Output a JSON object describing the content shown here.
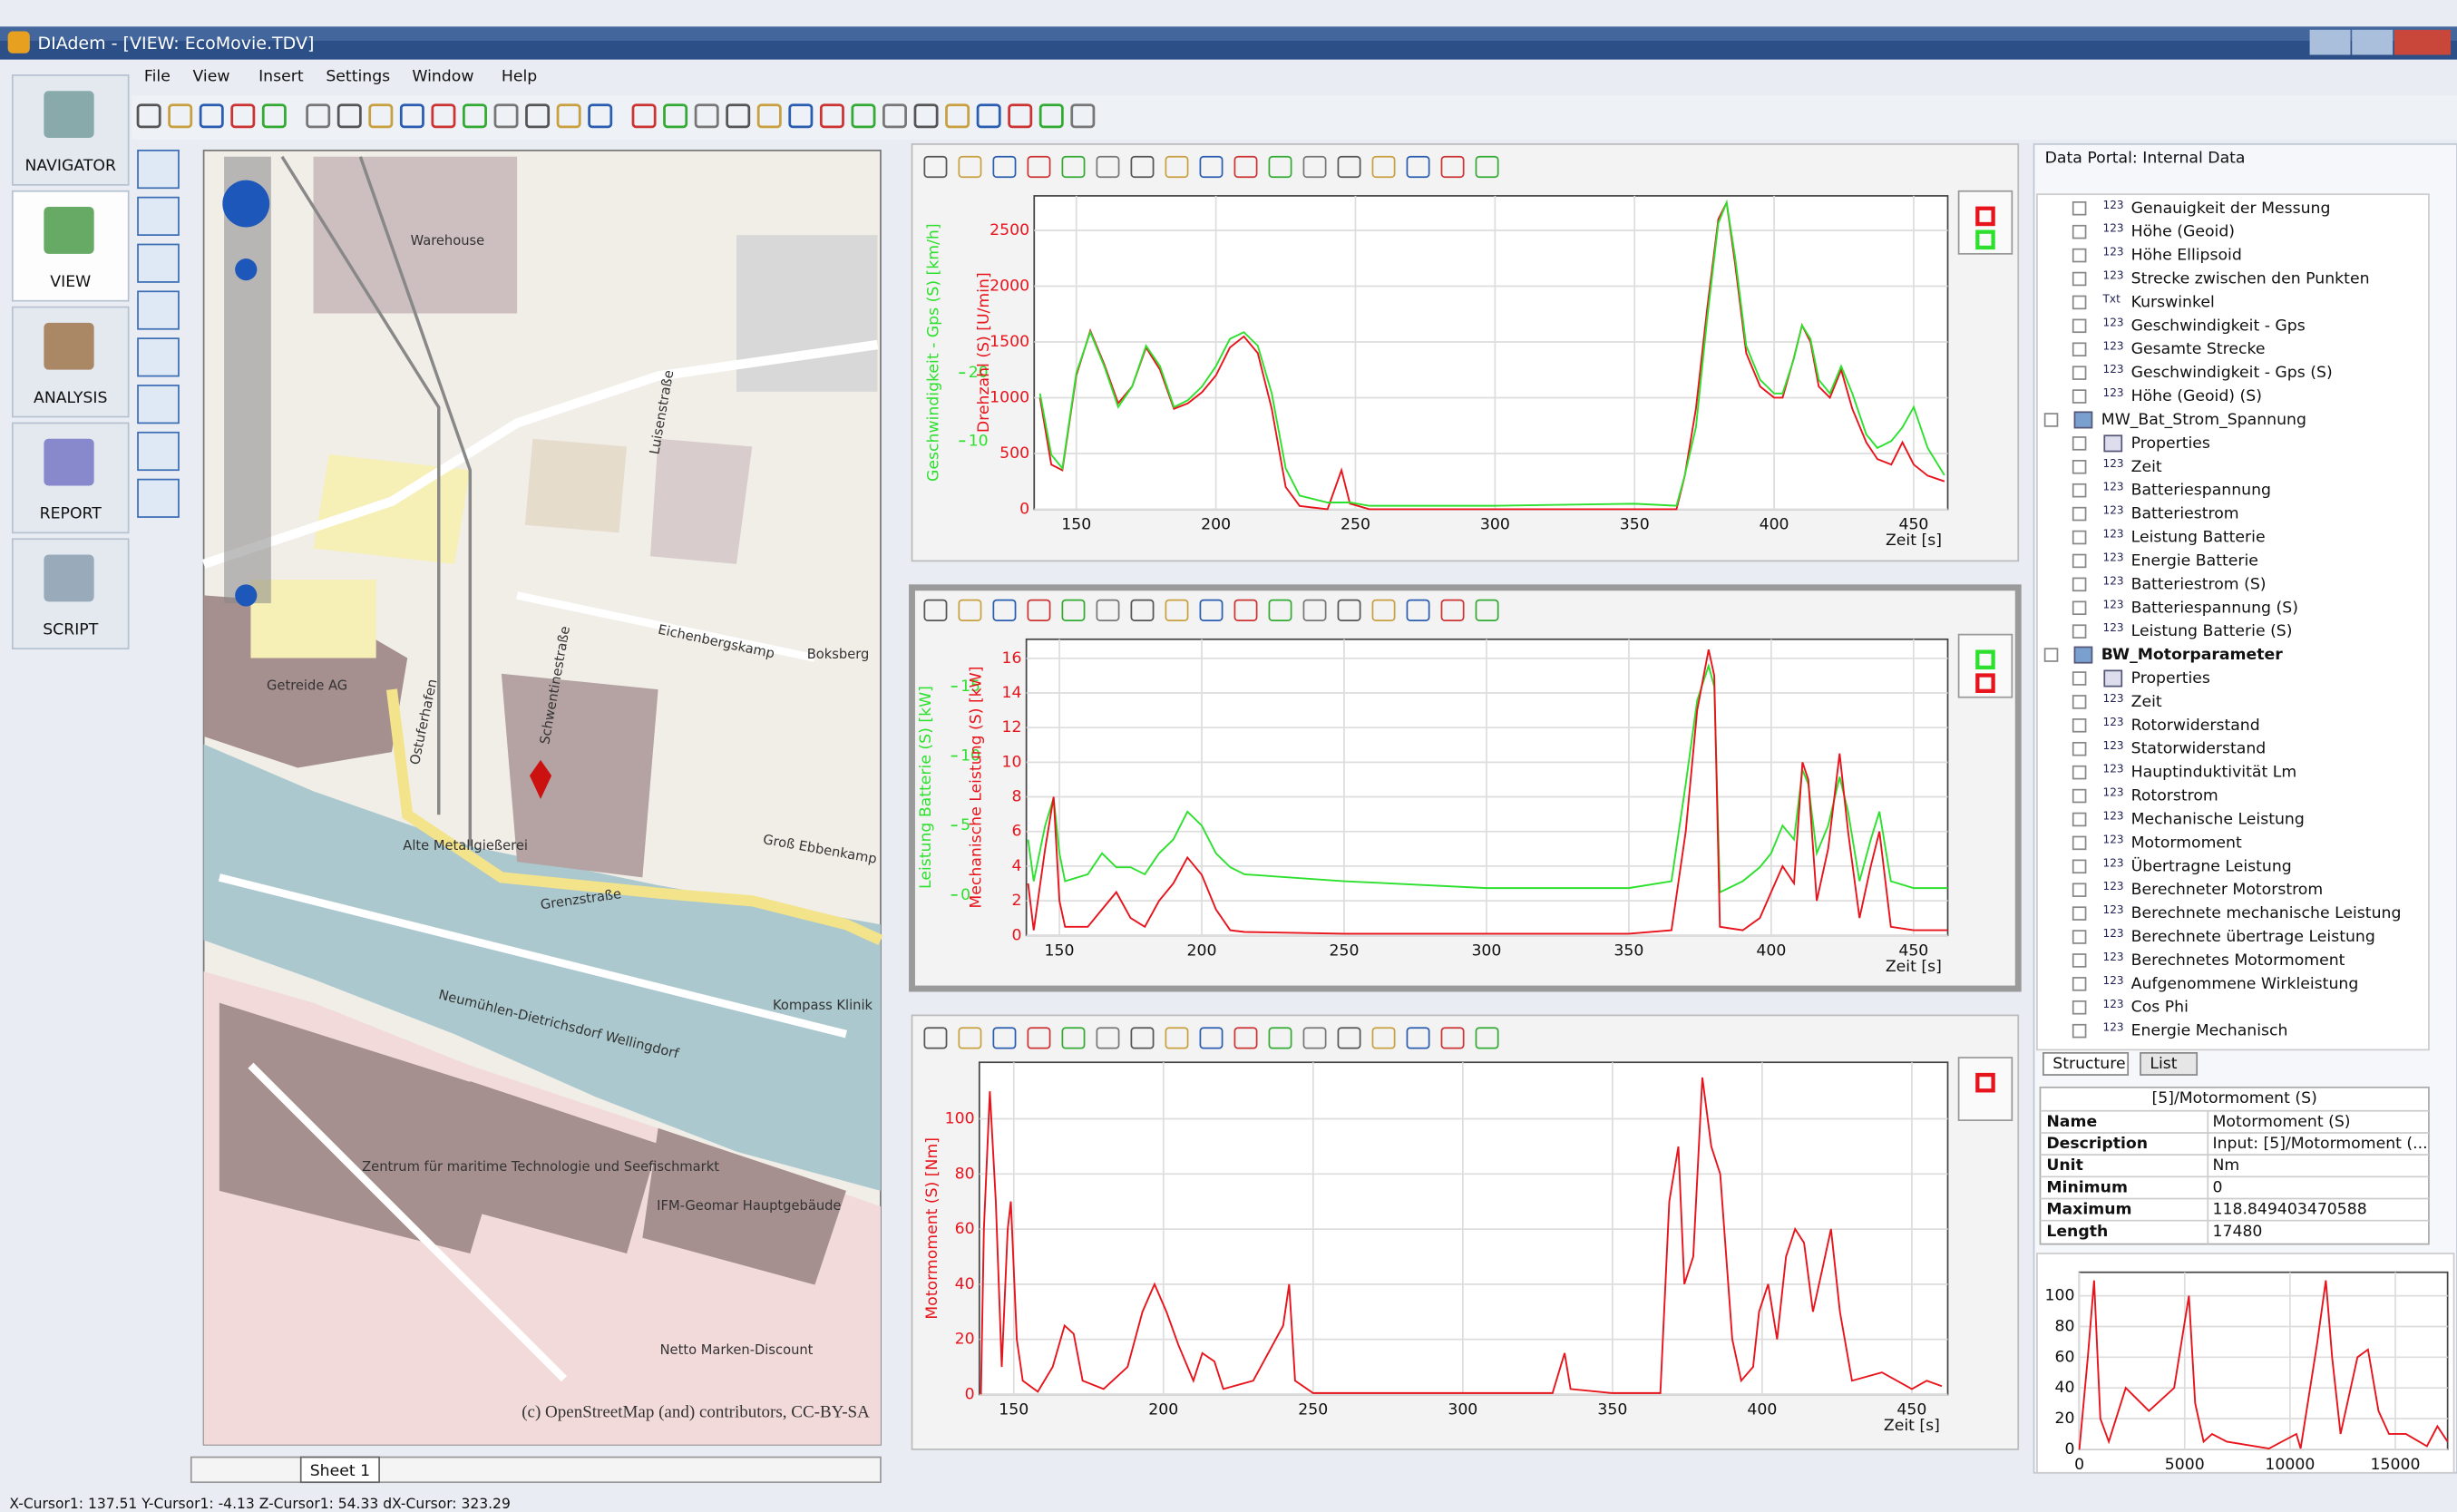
{
  "window": {
    "title": "DIAdem - [VIEW:  EcoMovie.TDV]"
  },
  "menu": [
    "File",
    "View",
    "Insert",
    "Settings",
    "Window",
    "Help"
  ],
  "nav": [
    "NAVIGATOR",
    "VIEW",
    "ANALYSIS",
    "REPORT",
    "SCRIPT"
  ],
  "map": {
    "labels": [
      "Warehouse",
      "Getreide AG",
      "Alte Metallgießerei",
      "Eichenbergskamp",
      "Boksberg",
      "Grenzstraße",
      "Groß Ebbenkamp",
      "Neumühlen-Dietrichsdorf Wellingdorf",
      "Zentrum für maritime Technologie und Seefischmarkt",
      "IFM-Geomar Hauptgebäude",
      "Kompass Klinik",
      "Netto Marken-Discount",
      "Schwentinestraße",
      "Luisenstraße",
      "Ostufer­hafen"
    ],
    "attribution": "(c) OpenStreetMap (and) contributors, CC-BY-SA"
  },
  "sheet_tab": "Sheet 1",
  "charts": [
    {
      "type": "line",
      "xlabel": "Zeit [s]",
      "ylabel": "Drehzahl (S) [U/min]",
      "y2label": "Geschwindigkeit - Gps (S) [km/h]",
      "xlim": [
        134.9,
        462.2
      ],
      "xticks": [
        150,
        200,
        250,
        300,
        350,
        400,
        450
      ],
      "ylim": [
        0,
        2810
      ],
      "yticks": [
        0,
        500,
        1000,
        1500,
        2000,
        2500
      ],
      "y2lim": [
        0,
        46
      ],
      "y2ticks": [
        10,
        20
      ],
      "x": [
        137,
        141,
        145,
        150,
        155,
        160,
        165,
        170,
        175,
        180,
        185,
        190,
        195,
        200,
        205,
        210,
        215,
        220,
        225,
        230,
        240,
        245,
        248,
        255,
        300,
        350,
        365,
        368,
        372,
        376,
        380,
        383,
        386,
        390,
        395,
        400,
        403,
        407,
        410,
        413,
        416,
        420,
        424,
        428,
        433,
        437,
        442,
        446,
        450,
        455,
        461
      ],
      "series": [
        {
          "color": "#e8141c",
          "values": [
            1000,
            400,
            350,
            1200,
            1600,
            1300,
            950,
            1100,
            1450,
            1250,
            900,
            950,
            1050,
            1200,
            1450,
            1550,
            1400,
            900,
            200,
            30,
            0,
            350,
            50,
            0,
            0,
            0,
            0,
            300,
            900,
            1800,
            2600,
            2750,
            2200,
            1400,
            1100,
            1000,
            1000,
            1350,
            1650,
            1500,
            1100,
            1000,
            1250,
            900,
            600,
            450,
            400,
            600,
            400,
            300,
            250
          ]
        },
        {
          "color": "#2ee02e",
          "axis": "y2",
          "values": [
            17,
            8,
            6,
            20,
            26,
            21,
            15,
            18,
            24,
            21,
            15,
            16,
            18,
            21,
            25,
            26,
            24,
            17,
            6,
            2,
            1,
            1,
            1,
            0.5,
            0.5,
            0.8,
            0.5,
            5,
            12,
            28,
            42,
            45,
            37,
            24,
            19,
            17,
            17,
            22,
            27,
            25,
            19,
            17,
            21,
            17,
            11,
            9,
            10,
            12,
            15,
            9,
            5
          ]
        }
      ]
    },
    {
      "type": "line",
      "xlabel": "Zeit [s]",
      "ylabel": "Mechanische Leistung (S) [kW]",
      "y2label": "Leistung Batterie (S) [kW]",
      "xlim": [
        138.4,
        462
      ],
      "xticks": [
        150,
        200,
        250,
        300,
        350,
        400,
        450
      ],
      "ylim": [
        0,
        17.1
      ],
      "yticks": [
        0,
        2,
        4,
        6,
        8,
        10,
        12,
        14,
        16
      ],
      "y2lim": [
        -2.9,
        18.4
      ],
      "y2ticks": [
        0,
        5,
        10,
        15
      ],
      "x": [
        139,
        141,
        145,
        148,
        150,
        152,
        160,
        165,
        170,
        175,
        180,
        185,
        190,
        195,
        200,
        205,
        210,
        215,
        250,
        300,
        350,
        365,
        370,
        374,
        378,
        380,
        382,
        390,
        396,
        400,
        404,
        408,
        411,
        413,
        416,
        420,
        424,
        427,
        431,
        435,
        438,
        442,
        450,
        462
      ],
      "series": [
        {
          "color": "#2ee02e",
          "axis": "y2",
          "values": [
            4,
            1,
            5,
            7,
            3,
            1,
            1.5,
            3,
            2,
            2,
            1.5,
            3,
            4,
            6,
            5,
            3,
            2,
            1.5,
            1,
            0.5,
            0.5,
            1,
            8,
            14,
            16.5,
            15,
            0.2,
            1,
            2,
            3,
            5,
            4,
            9,
            8,
            3,
            5,
            8.5,
            6,
            1,
            4,
            6,
            1,
            0.5,
            0.5
          ]
        },
        {
          "color": "#e8141c",
          "values": [
            3,
            0.3,
            5,
            8,
            2,
            0.5,
            0.5,
            1.5,
            2.5,
            1,
            0.5,
            2,
            3,
            4.5,
            3.5,
            1.5,
            0.3,
            0.2,
            0.1,
            0.1,
            0.1,
            0.3,
            6,
            13,
            16.5,
            15,
            0.5,
            0.3,
            1,
            2.5,
            4,
            3,
            10,
            9,
            2,
            5,
            10.5,
            6,
            1,
            4,
            6,
            0.5,
            0.3,
            0.3
          ]
        }
      ]
    },
    {
      "type": "line",
      "xlabel": "Zeit [s]",
      "ylabel": "Motormoment (S) [Nm]",
      "xlim": [
        138.5,
        462
      ],
      "xticks": [
        150,
        200,
        250,
        300,
        350,
        400,
        450
      ],
      "ylim": [
        0,
        120.5
      ],
      "yticks": [
        0,
        20,
        40,
        60,
        80,
        100
      ],
      "x": [
        139,
        140,
        142,
        144,
        146,
        148,
        149,
        151,
        153,
        158,
        163,
        167,
        170,
        173,
        180,
        188,
        193,
        197,
        201,
        205,
        210,
        213,
        217,
        220,
        230,
        240,
        242,
        244,
        250,
        300,
        330,
        334,
        336,
        350,
        366,
        369,
        372,
        374,
        377,
        380,
        383,
        386,
        390,
        393,
        397,
        399,
        402,
        405,
        408,
        411,
        414,
        417,
        420,
        423,
        426,
        430,
        440,
        450,
        455,
        460
      ],
      "series": [
        {
          "color": "#e8141c",
          "values": [
            0,
            60,
            110,
            70,
            10,
            60,
            70,
            20,
            5,
            1,
            10,
            25,
            22,
            5,
            2,
            10,
            30,
            40,
            30,
            18,
            5,
            15,
            12,
            2,
            5,
            25,
            40,
            5,
            0.5,
            0.5,
            0.5,
            15,
            2,
            0.5,
            0.5,
            70,
            90,
            40,
            50,
            115,
            90,
            80,
            20,
            5,
            10,
            30,
            40,
            20,
            50,
            60,
            55,
            30,
            45,
            60,
            30,
            5,
            8,
            2,
            5,
            3
          ]
        }
      ]
    }
  ],
  "portal": {
    "title": "Data Portal: Internal Data",
    "tree": [
      {
        "label": "Genauigkeit der Messung",
        "level": 2,
        "icon": "123"
      },
      {
        "label": "Höhe (Geoid)",
        "level": 2,
        "icon": "123"
      },
      {
        "label": "Höhe Ellipsoid",
        "level": 2,
        "icon": "123"
      },
      {
        "label": "Strecke zwischen den Punkten",
        "level": 2,
        "icon": "123"
      },
      {
        "label": "Kurswinkel",
        "level": 2,
        "icon": "Txt"
      },
      {
        "label": "Geschwindigkeit - Gps",
        "level": 2,
        "icon": "123"
      },
      {
        "label": "Gesamte Strecke",
        "level": 2,
        "icon": "123"
      },
      {
        "label": "Geschwindigkeit - Gps (S)",
        "level": 2,
        "icon": "123"
      },
      {
        "label": "Höhe (Geoid) (S)",
        "level": 2,
        "icon": "123"
      },
      {
        "label": "MW_Bat_Strom_Spannung",
        "level": 1
      },
      {
        "label": "Properties",
        "level": 2
      },
      {
        "label": "Zeit",
        "level": 2,
        "icon": "123"
      },
      {
        "label": "Batteriespannung",
        "level": 2,
        "icon": "123"
      },
      {
        "label": "Batteriestrom",
        "level": 2,
        "icon": "123"
      },
      {
        "label": "Leistung Batterie",
        "level": 2,
        "icon": "123"
      },
      {
        "label": "Energie Batterie",
        "level": 2,
        "icon": "123"
      },
      {
        "label": "Batteriestrom (S)",
        "level": 2,
        "icon": "123"
      },
      {
        "label": "Batteriespannung (S)",
        "level": 2,
        "icon": "123"
      },
      {
        "label": "Leistung Batterie (S)",
        "level": 2,
        "icon": "123"
      },
      {
        "label": "BW_Motorparameter",
        "level": 1,
        "bold": true
      },
      {
        "label": "Properties",
        "level": 2
      },
      {
        "label": "Zeit",
        "level": 2,
        "icon": "123"
      },
      {
        "label": "Rotorwiderstand",
        "level": 2,
        "icon": "123"
      },
      {
        "label": "Statorwiderstand",
        "level": 2,
        "icon": "123"
      },
      {
        "label": "Hauptinduktivität Lm",
        "level": 2,
        "icon": "123"
      },
      {
        "label": "Rotorstrom",
        "level": 2,
        "icon": "123"
      },
      {
        "label": "Mechanische Leistung",
        "level": 2,
        "icon": "123"
      },
      {
        "label": "Motormoment",
        "level": 2,
        "icon": "123"
      },
      {
        "label": "Übertragne Leistung",
        "level": 2,
        "icon": "123"
      },
      {
        "label": "Berechneter Motorstrom",
        "level": 2,
        "icon": "123"
      },
      {
        "label": "Berechnete mechanische Leistung",
        "level": 2,
        "icon": "123"
      },
      {
        "label": "Berechnete übertrage Leistung",
        "level": 2,
        "icon": "123"
      },
      {
        "label": "Berechnetes Motormoment",
        "level": 2,
        "icon": "123"
      },
      {
        "label": "Aufgenommene Wirkleistung",
        "level": 2,
        "icon": "123"
      },
      {
        "label": "Cos Phi",
        "level": 2,
        "icon": "123"
      },
      {
        "label": "Energie Mechanisch",
        "level": 2,
        "icon": "123"
      }
    ],
    "tabs": [
      "Structure",
      "List"
    ],
    "properties": {
      "title": "[5]/Motormoment (S)",
      "rows": [
        [
          "Name",
          "Motormoment (S)"
        ],
        [
          "Description",
          "Input: [5]/Motormoment (..."
        ],
        [
          "Unit",
          "Nm"
        ],
        [
          "Minimum",
          "0"
        ],
        [
          "Maximum",
          "118.849403470588"
        ],
        [
          "Length",
          "17480"
        ]
      ]
    },
    "preview": {
      "type": "line",
      "xlim": [
        0,
        17480
      ],
      "xticks": [
        0,
        5000,
        10000,
        15000
      ],
      "ylim": [
        0,
        115.3
      ],
      "yticks": [
        0,
        20,
        40,
        60,
        80,
        100
      ],
      "x": [
        0,
        400,
        700,
        1000,
        1400,
        2200,
        3300,
        4500,
        5200,
        5500,
        5900,
        6300,
        7000,
        9000,
        10300,
        10500,
        11300,
        11700,
        12000,
        12400,
        13200,
        13700,
        14200,
        14700,
        15500,
        16500,
        17000,
        17480
      ],
      "series": [
        {
          "color": "#e8141c",
          "values": [
            0,
            60,
            110,
            20,
            5,
            40,
            25,
            40,
            100,
            30,
            5,
            10,
            5,
            0.5,
            10,
            0.5,
            70,
            110,
            60,
            10,
            60,
            65,
            25,
            10,
            10,
            2,
            15,
            5
          ]
        }
      ]
    }
  },
  "status": "X-Cursor1: 137.51 Y-Cursor1: -4.13 Z-Cursor1: 54.33 dX-Cursor: 323.29"
}
